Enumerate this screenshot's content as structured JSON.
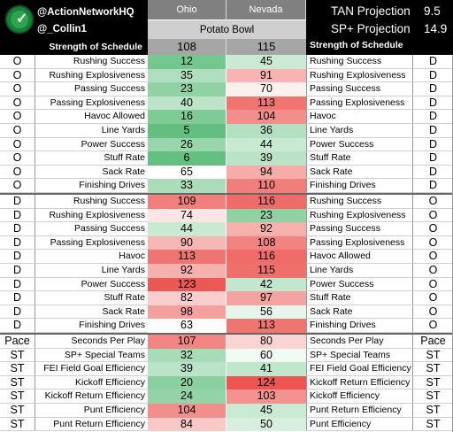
{
  "header": {
    "handle1": "@ActionNetworkHQ",
    "handle2": "@_Collin1",
    "team_a": "Ohio",
    "team_b": "Nevada",
    "game": "Potato Bowl",
    "sos_label_left": "Strength of Schedule",
    "sos_label_right": "Strength of Schedule",
    "sos_a": "108",
    "sos_b": "115",
    "proj1_label": "TAN Projection",
    "proj1_value": "9.5",
    "proj2_label": "SP+ Projection",
    "proj2_value": "14.9"
  },
  "offense_defense": [
    {
      "l": "O",
      "stat": "Rushing Success",
      "a": "12",
      "b": "45",
      "r_stat": "Rushing Success",
      "r": "D"
    },
    {
      "l": "O",
      "stat": "Rushing Explosiveness",
      "a": "35",
      "b": "91",
      "r_stat": "Rushing Explosiveness",
      "r": "D"
    },
    {
      "l": "O",
      "stat": "Passing Success",
      "a": "23",
      "b": "70",
      "r_stat": "Passing Success",
      "r": "D"
    },
    {
      "l": "O",
      "stat": "Passing Explosiveness",
      "a": "40",
      "b": "113",
      "r_stat": "Passing Explosiveness",
      "r": "D"
    },
    {
      "l": "O",
      "stat": "Havoc Allowed",
      "a": "16",
      "b": "104",
      "r_stat": "Havoc",
      "r": "D"
    },
    {
      "l": "O",
      "stat": "Line Yards",
      "a": "5",
      "b": "36",
      "r_stat": "Line Yards",
      "r": "D"
    },
    {
      "l": "O",
      "stat": "Power Success",
      "a": "26",
      "b": "44",
      "r_stat": "Power Success",
      "r": "D"
    },
    {
      "l": "O",
      "stat": "Stuff Rate",
      "a": "6",
      "b": "39",
      "r_stat": "Stuff Rate",
      "r": "D"
    },
    {
      "l": "O",
      "stat": "Sack Rate",
      "a": "65",
      "b": "94",
      "r_stat": "Sack Rate",
      "r": "D"
    },
    {
      "l": "O",
      "stat": "Finishing Drives",
      "a": "33",
      "b": "110",
      "r_stat": "Finishing Drives",
      "r": "D"
    }
  ],
  "defense_offense": [
    {
      "l": "D",
      "stat": "Rushing Success",
      "a": "109",
      "b": "116",
      "r_stat": "Rushing Success",
      "r": "O"
    },
    {
      "l": "D",
      "stat": "Rushing Explosiveness",
      "a": "74",
      "b": "23",
      "r_stat": "Rushing Explosiveness",
      "r": "O"
    },
    {
      "l": "D",
      "stat": "Passing Success",
      "a": "44",
      "b": "92",
      "r_stat": "Passing Success",
      "r": "O"
    },
    {
      "l": "D",
      "stat": "Passing Explosiveness",
      "a": "90",
      "b": "108",
      "r_stat": "Passing Explosiveness",
      "r": "O"
    },
    {
      "l": "D",
      "stat": "Havoc",
      "a": "113",
      "b": "116",
      "r_stat": "Havoc Allowed",
      "r": "O"
    },
    {
      "l": "D",
      "stat": "Line Yards",
      "a": "92",
      "b": "115",
      "r_stat": "Line Yards",
      "r": "O"
    },
    {
      "l": "D",
      "stat": "Power Success",
      "a": "123",
      "b": "42",
      "r_stat": "Power Success",
      "r": "O"
    },
    {
      "l": "D",
      "stat": "Stuff Rate",
      "a": "82",
      "b": "97",
      "r_stat": "Stuff Rate",
      "r": "O"
    },
    {
      "l": "D",
      "stat": "Sack Rate",
      "a": "98",
      "b": "56",
      "r_stat": "Sack Rate",
      "r": "O"
    },
    {
      "l": "D",
      "stat": "Finishing Drives",
      "a": "63",
      "b": "113",
      "r_stat": "Finishing Drives",
      "r": "O"
    }
  ],
  "special": [
    {
      "l": "Pace",
      "stat": "Seconds Per Play",
      "a": "107",
      "b": "80",
      "r_stat": "Seconds Per Play",
      "r": "Pace"
    },
    {
      "l": "ST",
      "stat": "SP+ Special Teams",
      "a": "32",
      "b": "60",
      "r_stat": "SP+ Special Teams",
      "r": "ST"
    },
    {
      "l": "ST",
      "stat": "FEI Field Goal Efficiency",
      "a": "39",
      "b": "41",
      "r_stat": "FEI Field Goal Efficiency",
      "r": "ST"
    },
    {
      "l": "ST",
      "stat": "Kickoff Efficiency",
      "a": "20",
      "b": "124",
      "r_stat": "Kickoff Return Efficiency",
      "r": "ST"
    },
    {
      "l": "ST",
      "stat": "Kickoff Return Efficiency",
      "a": "24",
      "b": "103",
      "r_stat": "Kickoff Efficiency",
      "r": "ST"
    },
    {
      "l": "ST",
      "stat": "Punt Efficiency",
      "a": "104",
      "b": "45",
      "r_stat": "Punt Return Efficiency",
      "r": "ST"
    },
    {
      "l": "ST",
      "stat": "Punt Return Efficiency",
      "a": "84",
      "b": "50",
      "r_stat": "Punt Efficiency",
      "r": "ST"
    }
  ]
}
